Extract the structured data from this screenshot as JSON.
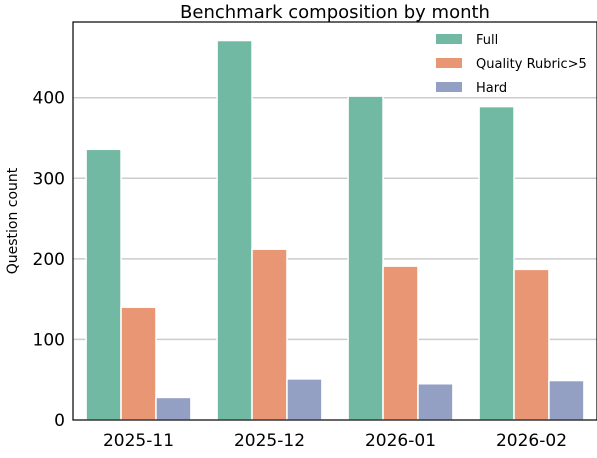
{
  "chart_data": {
    "type": "bar",
    "title": "Benchmark composition by month",
    "xlabel": "",
    "ylabel": "Question count",
    "categories": [
      "2025-11",
      "2025-12",
      "2026-01",
      "2026-02"
    ],
    "series": [
      {
        "name": "Full",
        "values": [
          336,
          471,
          402,
          389
        ],
        "color": "#72b9a3"
      },
      {
        "name": "Quality Rubric>5",
        "values": [
          140,
          212,
          191,
          187
        ],
        "color": "#e99675"
      },
      {
        "name": "Hard",
        "values": [
          28,
          51,
          45,
          49
        ],
        "color": "#949fc4"
      }
    ],
    "yticks": [
      0,
      100,
      200,
      300,
      400
    ],
    "ylim": [
      0,
      494
    ],
    "grid": "horizontal",
    "legend_position": "top-right"
  }
}
